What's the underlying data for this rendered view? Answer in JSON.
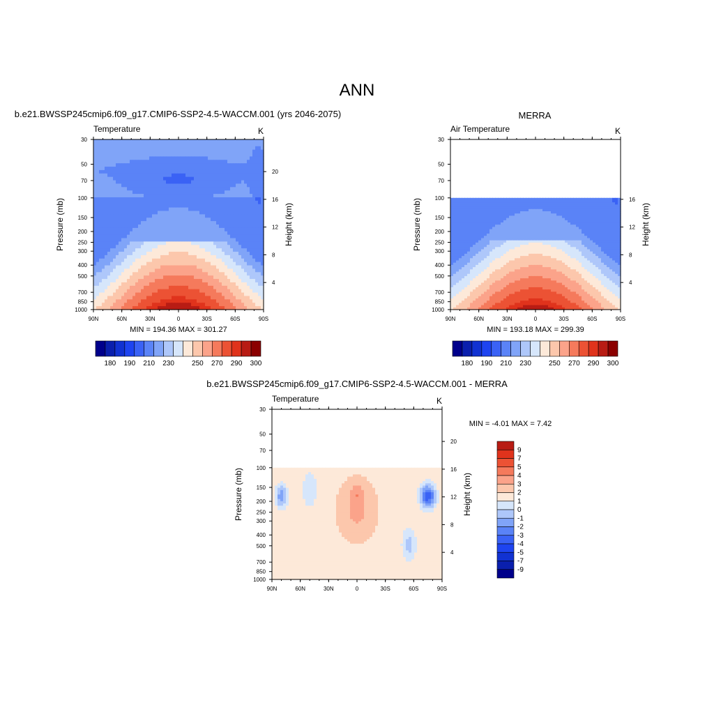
{
  "page_title": "ANN",
  "chart_data": [
    {
      "type": "heatmap",
      "title": "b.e21.BWSSP245cmip6.f09_g17.CMIP6-SSP2-4.5-WACCM.001 (yrs 2046-2075)",
      "variable": "Temperature",
      "units": "K",
      "ylabel": "Pressure (mb)",
      "ylabel_right": "Height (km)",
      "stats": "MIN = 194.36  MAX = 301.27",
      "pressure_ticks": [
        "30",
        "50",
        "70",
        "100",
        "150",
        "200",
        "250",
        "300",
        "400",
        "500",
        "700",
        "850",
        "1000"
      ],
      "lat_ticks": [
        "90N",
        "60N",
        "30N",
        "0",
        "30S",
        "60S",
        "90S"
      ],
      "height_ticks": [
        "20",
        "16",
        "12",
        "8",
        "4"
      ],
      "ylim_mb": [
        1000,
        30
      ],
      "xlim_lat": [
        90,
        -90
      ],
      "data_top_mb": 30,
      "contour_levels": [
        180,
        185,
        190,
        195,
        200,
        210,
        220,
        230,
        240,
        250,
        260,
        270,
        280,
        290,
        295,
        300
      ],
      "colorbar_labels": [
        "180",
        "190",
        "210",
        "230",
        "250",
        "270",
        "290",
        "300"
      ],
      "colors": [
        "#00008b",
        "#0a1fad",
        "#1132d2",
        "#1e44f0",
        "#3a62f5",
        "#5a83f7",
        "#80a4f8",
        "#aec7fa",
        "#d6e6fb",
        "#fde9d9",
        "#fcc7ac",
        "#fba38a",
        "#f57a5c",
        "#ec5234",
        "#e0331c",
        "#b81c14",
        "#8b0000"
      ]
    },
    {
      "type": "heatmap",
      "title": "MERRA",
      "variable": "Air Temperature",
      "units": "K",
      "ylabel": "Pressure (mb)",
      "ylabel_right": "Height (km)",
      "stats": "MIN = 193.18  MAX = 299.39",
      "pressure_ticks": [
        "30",
        "50",
        "70",
        "100",
        "150",
        "200",
        "250",
        "300",
        "400",
        "500",
        "700",
        "850",
        "1000"
      ],
      "lat_ticks": [
        "90N",
        "60N",
        "30N",
        "0",
        "30S",
        "60S",
        "90S"
      ],
      "height_ticks": [
        "16",
        "12",
        "8",
        "4"
      ],
      "ylim_mb": [
        1000,
        30
      ],
      "xlim_lat": [
        90,
        -90
      ],
      "data_top_mb": 100,
      "contour_levels": [
        180,
        185,
        190,
        195,
        200,
        210,
        220,
        230,
        240,
        250,
        260,
        270,
        280,
        290,
        295,
        300
      ],
      "colorbar_labels": [
        "180",
        "190",
        "210",
        "230",
        "250",
        "270",
        "290",
        "300"
      ],
      "colors": [
        "#00008b",
        "#0a1fad",
        "#1132d2",
        "#1e44f0",
        "#3a62f5",
        "#5a83f7",
        "#80a4f8",
        "#aec7fa",
        "#d6e6fb",
        "#fde9d9",
        "#fcc7ac",
        "#fba38a",
        "#f57a5c",
        "#ec5234",
        "#e0331c",
        "#b81c14",
        "#8b0000"
      ]
    },
    {
      "type": "heatmap",
      "title": "b.e21.BWSSP245cmip6.f09_g17.CMIP6-SSP2-4.5-WACCM.001 - MERRA",
      "variable": "Temperature",
      "units": "K",
      "ylabel": "Pressure (mb)",
      "ylabel_right": "Height (km)",
      "stats": "MIN =  -4.01  MAX =   7.42",
      "pressure_ticks": [
        "30",
        "50",
        "70",
        "100",
        "150",
        "200",
        "250",
        "300",
        "400",
        "500",
        "700",
        "850",
        "1000"
      ],
      "lat_ticks": [
        "90N",
        "60N",
        "30N",
        "0",
        "30S",
        "60S",
        "90S"
      ],
      "height_ticks": [
        "20",
        "16",
        "12",
        "8",
        "4"
      ],
      "ylim_mb": [
        1000,
        30
      ],
      "xlim_lat": [
        90,
        -90
      ],
      "data_top_mb": 100,
      "contour_levels": [
        -9,
        -7,
        -5,
        -4,
        -3,
        -2,
        -1,
        0,
        1,
        2,
        3,
        4,
        5,
        7,
        9
      ],
      "colorbar_labels": [
        "9",
        "7",
        "5",
        "4",
        "3",
        "2",
        "1",
        "0",
        "-1",
        "-2",
        "-3",
        "-4",
        "-5",
        "-7",
        "-9"
      ],
      "colors": [
        "#00008b",
        "#0a1fad",
        "#1132d2",
        "#1e44f0",
        "#3a62f5",
        "#5a83f7",
        "#80a4f8",
        "#aec7fa",
        "#d6e6fb",
        "#fde9d9",
        "#fcc7ac",
        "#fba38a",
        "#f57a5c",
        "#ec5234",
        "#e0331c",
        "#b81c14"
      ]
    }
  ]
}
